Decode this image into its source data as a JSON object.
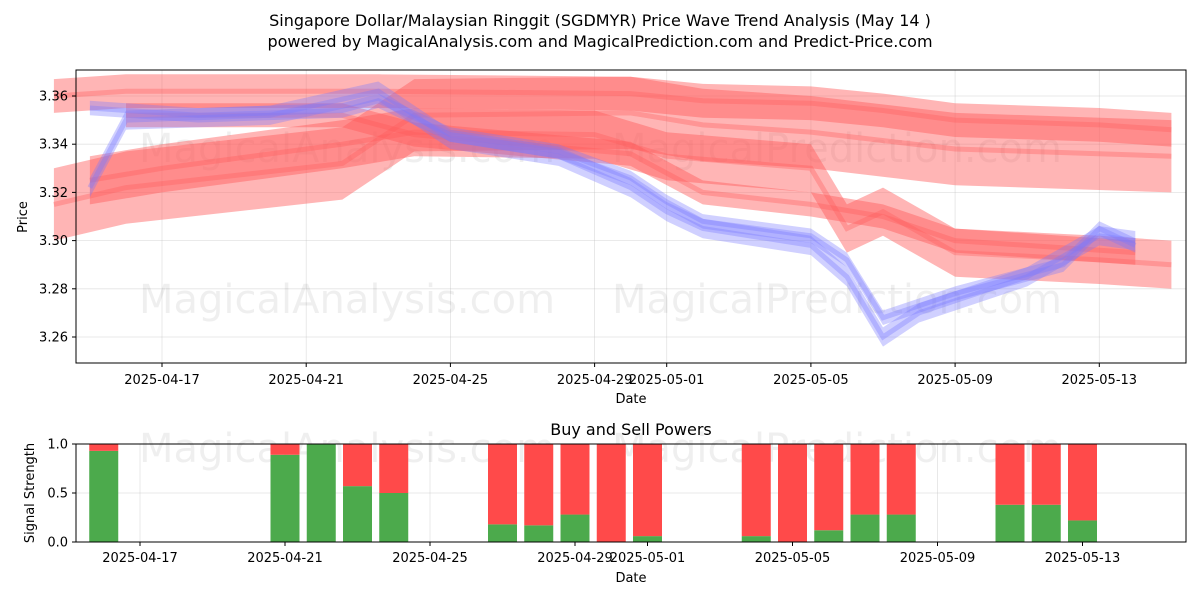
{
  "title_line1": "Singapore Dollar/Malaysian Ringgit (SGDMYR) Price Wave Trend Analysis (May 14 )",
  "title_line2": "powered by MagicalAnalysis.com and MagicalPrediction.com and Predict-Price.com",
  "watermarks": [
    "MagicalAnalysis.com",
    "MagicalPrediction.com"
  ],
  "colors": {
    "sell": "#ff4a4a",
    "buy": "#4caa4c",
    "bull_band": "#ff5a5a",
    "bear_band": "#7777ff"
  },
  "chart_data": [
    {
      "type": "line",
      "title": "",
      "xlabel": "Date",
      "ylabel": "Price",
      "xlim": [
        "2025-04-14",
        "2025-05-15"
      ],
      "ylim": [
        3.249,
        3.371
      ],
      "x_ticks": [
        "2025-04-17",
        "2025-04-21",
        "2025-04-25",
        "2025-04-29",
        "2025-05-01",
        "2025-05-05",
        "2025-05-09",
        "2025-05-13"
      ],
      "y_ticks": [
        3.26,
        3.28,
        3.3,
        3.32,
        3.34,
        3.36
      ],
      "grid": true,
      "series": [
        {
          "kind": "red-band",
          "x": [
            "2025-04-14",
            "2025-04-16",
            "2025-04-22",
            "2025-04-23",
            "2025-04-30",
            "2025-05-02",
            "2025-05-05",
            "2025-05-07",
            "2025-05-09",
            "2025-05-13",
            "2025-05-15"
          ],
          "values": [
            3.36,
            3.362,
            3.362,
            3.362,
            3.361,
            3.358,
            3.357,
            3.354,
            3.35,
            3.348,
            3.346
          ],
          "width": 0.014
        },
        {
          "kind": "red-band",
          "x": [
            "2025-04-14",
            "2025-04-16",
            "2025-04-22",
            "2025-04-24",
            "2025-04-30",
            "2025-05-02",
            "2025-05-05",
            "2025-05-09",
            "2025-05-15"
          ],
          "values": [
            3.315,
            3.322,
            3.332,
            3.352,
            3.353,
            3.348,
            3.345,
            3.338,
            3.335
          ],
          "width": 0.03
        },
        {
          "kind": "red-band",
          "x": [
            "2025-04-15",
            "2025-04-17",
            "2025-04-22",
            "2025-04-24",
            "2025-04-29",
            "2025-05-01",
            "2025-05-05",
            "2025-05-06",
            "2025-05-07",
            "2025-05-09",
            "2025-05-13",
            "2025-05-15"
          ],
          "values": [
            3.325,
            3.33,
            3.34,
            3.345,
            3.344,
            3.335,
            3.33,
            3.305,
            3.312,
            3.295,
            3.292,
            3.29
          ],
          "width": 0.02
        },
        {
          "kind": "red-band",
          "x": [
            "2025-04-16",
            "2025-04-22",
            "2025-04-24",
            "2025-04-30",
            "2025-05-02",
            "2025-05-05",
            "2025-05-07",
            "2025-05-09",
            "2025-05-14"
          ],
          "values": [
            3.352,
            3.352,
            3.344,
            3.336,
            3.32,
            3.315,
            3.31,
            3.3,
            3.295
          ],
          "width": 0.01
        },
        {
          "kind": "blue-band",
          "x": [
            "2025-04-15",
            "2025-04-16",
            "2025-04-20",
            "2025-04-23",
            "2025-04-25",
            "2025-04-28",
            "2025-04-30",
            "2025-05-01",
            "2025-05-02",
            "2025-05-05",
            "2025-05-06",
            "2025-05-07",
            "2025-05-08",
            "2025-05-09",
            "2025-05-11",
            "2025-05-13",
            "2025-05-14"
          ],
          "values": [
            3.322,
            3.35,
            3.352,
            3.362,
            3.342,
            3.335,
            3.322,
            3.312,
            3.305,
            3.298,
            3.285,
            3.26,
            3.27,
            3.275,
            3.285,
            3.302,
            3.3
          ],
          "width": 0.008
        },
        {
          "kind": "blue-band",
          "x": [
            "2025-04-15",
            "2025-04-18",
            "2025-04-22",
            "2025-04-23",
            "2025-04-25",
            "2025-04-28",
            "2025-04-30",
            "2025-05-01",
            "2025-05-02",
            "2025-05-05",
            "2025-05-06",
            "2025-05-07",
            "2025-05-09",
            "2025-05-12",
            "2025-05-13",
            "2025-05-14"
          ],
          "values": [
            3.355,
            3.352,
            3.354,
            3.358,
            3.344,
            3.337,
            3.326,
            3.316,
            3.308,
            3.302,
            3.292,
            3.268,
            3.278,
            3.29,
            3.305,
            3.298
          ],
          "width": 0.006
        }
      ]
    },
    {
      "type": "bar",
      "title": "Buy and Sell Powers",
      "xlabel": "Date",
      "ylabel": "Signal Strength",
      "ylim": [
        0,
        1.0
      ],
      "y_ticks": [
        "0.0",
        "0.5",
        "1.0"
      ],
      "x_ticks": [
        "2025-04-17",
        "2025-04-21",
        "2025-04-25",
        "2025-04-29",
        "2025-05-01",
        "2025-05-05",
        "2025-05-09",
        "2025-05-13"
      ],
      "series": [
        {
          "name": "Buy",
          "x": [
            "2025-04-16",
            "2025-04-21",
            "2025-04-22",
            "2025-04-23",
            "2025-04-24",
            "2025-04-27",
            "2025-04-28",
            "2025-04-29",
            "2025-04-30",
            "2025-05-01",
            "2025-05-04",
            "2025-05-05",
            "2025-05-06",
            "2025-05-07",
            "2025-05-08",
            "2025-05-11",
            "2025-05-12",
            "2025-05-13"
          ],
          "values": [
            0.93,
            0.89,
            1.0,
            0.57,
            0.5,
            0.18,
            0.17,
            0.28,
            0.0,
            0.06,
            0.06,
            0.0,
            0.12,
            0.28,
            0.28,
            0.38,
            0.38,
            0.22
          ]
        },
        {
          "name": "Sell",
          "x": [
            "2025-04-16",
            "2025-04-21",
            "2025-04-22",
            "2025-04-23",
            "2025-04-24",
            "2025-04-27",
            "2025-04-28",
            "2025-04-29",
            "2025-04-30",
            "2025-05-01",
            "2025-05-04",
            "2025-05-05",
            "2025-05-06",
            "2025-05-07",
            "2025-05-08",
            "2025-05-11",
            "2025-05-12",
            "2025-05-13"
          ],
          "values": [
            0.07,
            0.11,
            0.0,
            0.43,
            0.5,
            0.82,
            0.83,
            0.72,
            1.0,
            0.94,
            0.94,
            1.0,
            0.88,
            0.72,
            0.72,
            0.62,
            0.62,
            0.78
          ]
        }
      ]
    }
  ]
}
